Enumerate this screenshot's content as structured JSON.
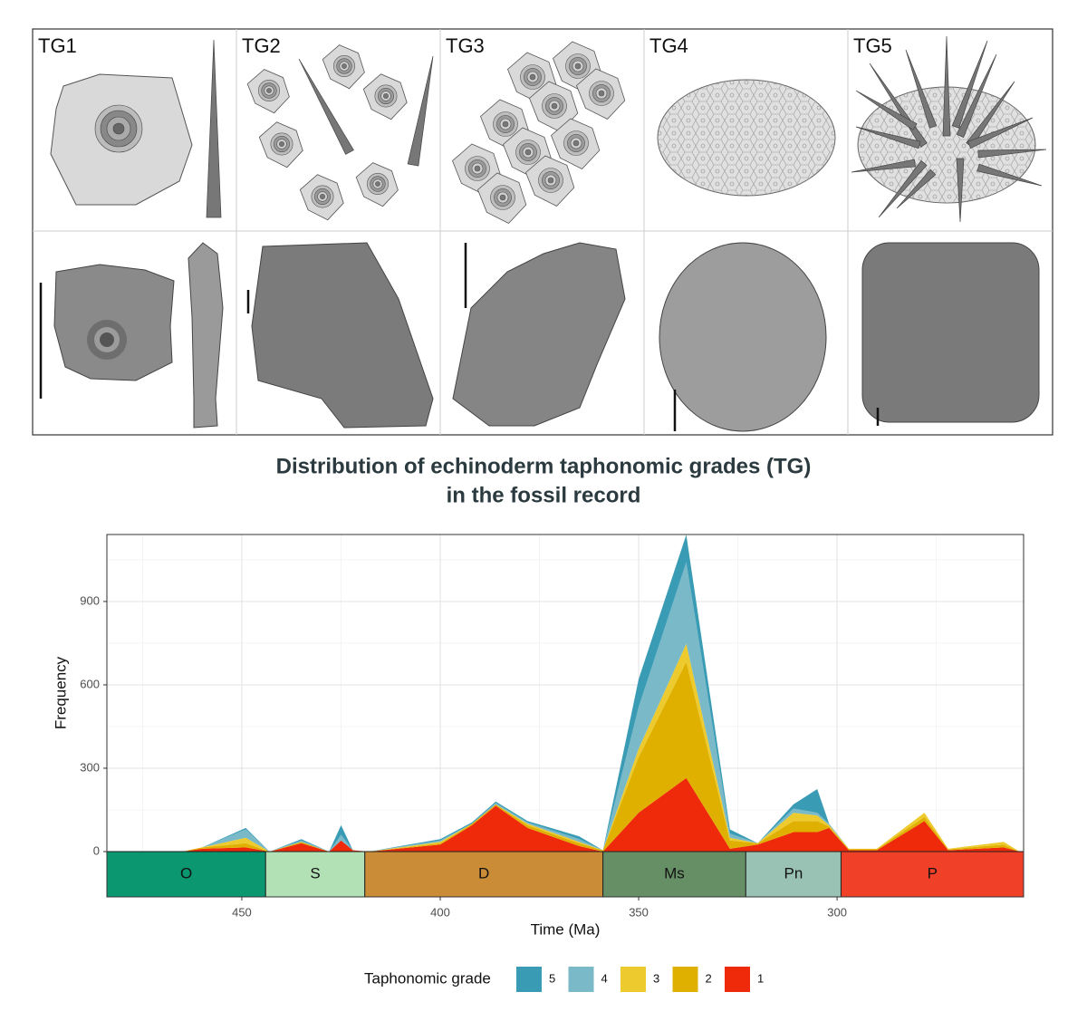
{
  "panels": {
    "labels": [
      "TG1",
      "TG2",
      "TG3",
      "TG4",
      "TG5"
    ]
  },
  "chart_data": {
    "type": "stacked-area",
    "title": [
      "Distribution of echinoderm taphonomic grades (TG)",
      "in the fossil record"
    ],
    "x_label": "Time (Ma)",
    "y_label": "Frequency",
    "x": [
      470,
      465,
      460,
      449,
      443,
      435,
      428,
      425,
      422,
      418,
      400,
      392,
      386,
      378,
      365,
      359,
      350,
      338,
      327,
      320,
      311,
      305,
      302,
      297,
      290,
      278,
      272,
      258,
      254
    ],
    "series": [
      {
        "name": "1",
        "color": "#ee2a0a",
        "values": [
          0,
          0,
          10,
          15,
          0,
          30,
          0,
          40,
          5,
          0,
          25,
          95,
          165,
          85,
          20,
          0,
          140,
          265,
          10,
          25,
          70,
          70,
          85,
          5,
          5,
          110,
          5,
          15,
          0
        ]
      },
      {
        "name": "2",
        "color": "#e0b000",
        "values": [
          0,
          0,
          5,
          15,
          0,
          5,
          0,
          0,
          0,
          0,
          5,
          5,
          5,
          10,
          10,
          5,
          200,
          418,
          30,
          5,
          40,
          40,
          5,
          3,
          3,
          15,
          3,
          10,
          0
        ]
      },
      {
        "name": "3",
        "color": "#edcb2f",
        "values": [
          0,
          0,
          0,
          20,
          0,
          0,
          0,
          0,
          0,
          0,
          5,
          0,
          0,
          5,
          5,
          0,
          30,
          65,
          10,
          0,
          30,
          20,
          5,
          2,
          2,
          15,
          2,
          10,
          0
        ]
      },
      {
        "name": "4",
        "color": "#79b9c8",
        "values": [
          0,
          0,
          0,
          30,
          0,
          5,
          0,
          20,
          0,
          0,
          5,
          0,
          5,
          5,
          10,
          0,
          150,
          293,
          15,
          0,
          15,
          10,
          5,
          0,
          0,
          0,
          0,
          0,
          0
        ]
      },
      {
        "name": "5",
        "color": "#3a9bb5",
        "values": [
          0,
          0,
          0,
          5,
          0,
          5,
          0,
          35,
          0,
          0,
          5,
          5,
          5,
          5,
          10,
          0,
          100,
          99,
          15,
          0,
          15,
          85,
          0,
          0,
          0,
          0,
          0,
          0,
          0
        ]
      }
    ],
    "xlim": [
      484,
      253
    ],
    "xticks": [
      450,
      400,
      350,
      300
    ],
    "xminor": [
      475,
      425,
      375,
      325,
      275
    ],
    "ylim": [
      -163,
      1141
    ],
    "yticks": [
      0,
      300,
      600,
      900
    ],
    "yminor": [
      150,
      450,
      750,
      1050
    ],
    "grid": true,
    "periods": [
      {
        "name": "O",
        "start": 486,
        "end": 444,
        "color": "#0b9870"
      },
      {
        "name": "S",
        "start": 444,
        "end": 419,
        "color": "#b3e1b6"
      },
      {
        "name": "D",
        "start": 419,
        "end": 359,
        "color": "#cb8c37"
      },
      {
        "name": "Ms",
        "start": 359,
        "end": 323,
        "color": "#678f66"
      },
      {
        "name": "Pn",
        "start": 323,
        "end": 299,
        "color": "#99c2b5"
      },
      {
        "name": "P",
        "start": 299,
        "end": 252,
        "color": "#f04028"
      }
    ],
    "legend_title": "Taphonomic grade",
    "legend": "bottom"
  }
}
